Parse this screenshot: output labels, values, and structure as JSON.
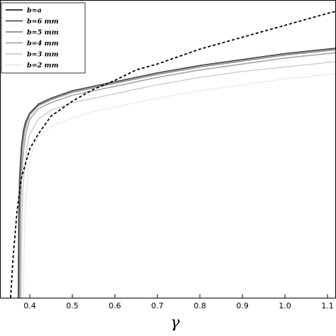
{
  "chart_data": {
    "type": "line",
    "title": "",
    "xlabel": "γ",
    "ylabel": "",
    "xlim": [
      0.33,
      1.12
    ],
    "ylim": [
      0,
      1
    ],
    "xticks": [
      "0.4",
      "0.5",
      "0.6",
      "0.7",
      "0.8",
      "0.9",
      "1.0",
      "1.1"
    ],
    "grid": false,
    "legend_position": "top-left",
    "series": [
      {
        "name": "b=a",
        "color": "#000000",
        "style": "dashed",
        "x": [
          0.355,
          0.36,
          0.37,
          0.38,
          0.4,
          0.42,
          0.45,
          0.5,
          0.55,
          0.6,
          0.65,
          0.7,
          0.75,
          0.8,
          0.85,
          0.9,
          0.95,
          1.0,
          1.05,
          1.1,
          1.12
        ],
        "y": [
          0.0,
          0.12,
          0.29,
          0.4,
          0.5,
          0.55,
          0.61,
          0.66,
          0.7,
          0.73,
          0.765,
          0.785,
          0.81,
          0.835,
          0.855,
          0.875,
          0.895,
          0.915,
          0.935,
          0.955,
          0.962
        ]
      },
      {
        "name": "b=6 mm",
        "color": "#4d4d4d",
        "style": "solid",
        "x": [
          0.373,
          0.374,
          0.376,
          0.38,
          0.385,
          0.39,
          0.4,
          0.42,
          0.45,
          0.5,
          0.55,
          0.6,
          0.7,
          0.8,
          0.9,
          1.0,
          1.1,
          1.12
        ],
        "y": [
          0.0,
          0.25,
          0.4,
          0.5,
          0.56,
          0.59,
          0.62,
          0.65,
          0.67,
          0.695,
          0.71,
          0.725,
          0.755,
          0.78,
          0.8,
          0.82,
          0.835,
          0.838
        ]
      },
      {
        "name": "b=5 mm",
        "color": "#8c8c8c",
        "style": "solid",
        "x": [
          0.375,
          0.376,
          0.378,
          0.382,
          0.387,
          0.392,
          0.4,
          0.42,
          0.45,
          0.5,
          0.55,
          0.6,
          0.7,
          0.8,
          0.9,
          1.0,
          1.1,
          1.12
        ],
        "y": [
          0.0,
          0.25,
          0.4,
          0.5,
          0.555,
          0.585,
          0.615,
          0.645,
          0.665,
          0.69,
          0.705,
          0.72,
          0.75,
          0.775,
          0.795,
          0.815,
          0.83,
          0.833
        ]
      },
      {
        "name": "b=4 mm",
        "color": "#a6a6a6",
        "style": "solid",
        "x": [
          0.377,
          0.378,
          0.38,
          0.385,
          0.39,
          0.395,
          0.4,
          0.42,
          0.45,
          0.5,
          0.55,
          0.6,
          0.7,
          0.8,
          0.9,
          1.0,
          1.1,
          1.12
        ],
        "y": [
          0.0,
          0.25,
          0.39,
          0.49,
          0.545,
          0.575,
          0.6,
          0.635,
          0.655,
          0.68,
          0.695,
          0.71,
          0.74,
          0.765,
          0.785,
          0.805,
          0.82,
          0.823
        ]
      },
      {
        "name": "b=3 mm",
        "color": "#cccccc",
        "style": "solid",
        "x": [
          0.38,
          0.381,
          0.384,
          0.39,
          0.395,
          0.4,
          0.42,
          0.45,
          0.5,
          0.55,
          0.6,
          0.7,
          0.8,
          0.9,
          1.0,
          1.1,
          1.12
        ],
        "y": [
          0.0,
          0.22,
          0.37,
          0.47,
          0.52,
          0.55,
          0.6,
          0.63,
          0.655,
          0.67,
          0.685,
          0.715,
          0.74,
          0.76,
          0.775,
          0.79,
          0.792
        ]
      },
      {
        "name": "b=2 mm",
        "color": "#e8e8e8",
        "style": "solid",
        "x": [
          0.385,
          0.387,
          0.39,
          0.395,
          0.4,
          0.41,
          0.42,
          0.45,
          0.5,
          0.55,
          0.6,
          0.7,
          0.8,
          0.9,
          1.0,
          1.1,
          1.12
        ],
        "y": [
          0.0,
          0.18,
          0.32,
          0.41,
          0.46,
          0.51,
          0.54,
          0.575,
          0.605,
          0.625,
          0.64,
          0.67,
          0.695,
          0.715,
          0.735,
          0.75,
          0.752
        ]
      }
    ]
  }
}
